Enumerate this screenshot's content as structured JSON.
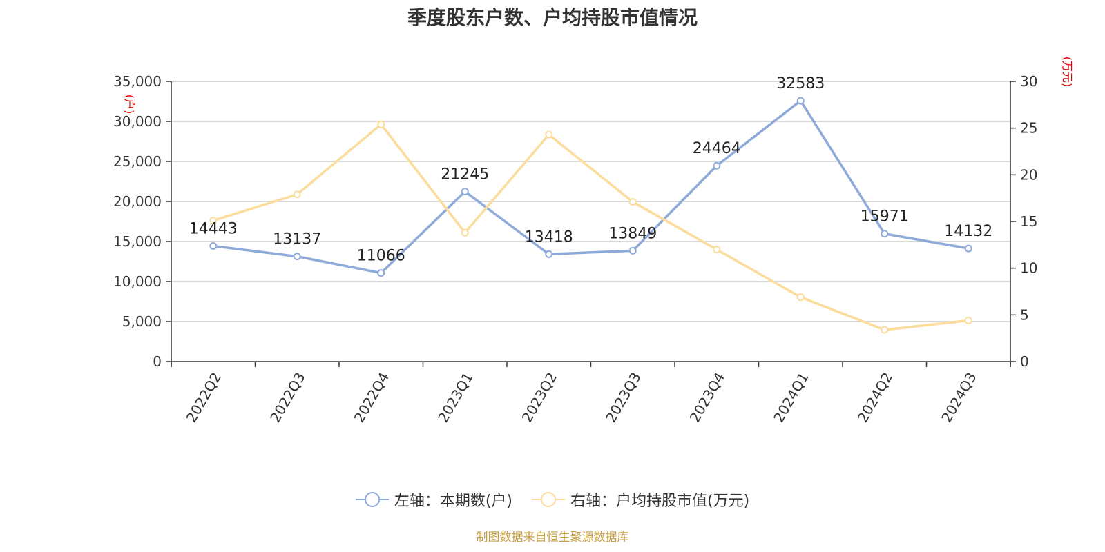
{
  "title": "季度股东户数、户均持股市值情况",
  "source_note": "制图数据来自恒生聚源数据库",
  "legend": {
    "left_label": "左轴：本期数(户)",
    "right_label": "右轴：户均持股市值(万元)"
  },
  "colors": {
    "left_series": "#8eaad9",
    "right_series": "#fcdc9c",
    "unit_text": "#e00000",
    "source_text": "#c8a040"
  },
  "chart_data": {
    "type": "line",
    "categories": [
      "2022Q2",
      "2022Q3",
      "2022Q4",
      "2023Q1",
      "2023Q2",
      "2023Q3",
      "2023Q4",
      "2024Q1",
      "2024Q2",
      "2024Q3"
    ],
    "left_axis": {
      "unit": "(户)",
      "ylim": [
        0,
        35000
      ],
      "ticks": [
        0,
        5000,
        10000,
        15000,
        20000,
        25000,
        30000,
        35000
      ],
      "tick_labels": [
        "0",
        "5,000",
        "10,000",
        "15,000",
        "20,000",
        "25,000",
        "30,000",
        "35,000"
      ]
    },
    "right_axis": {
      "unit": "(万元)",
      "ylim": [
        0,
        30
      ],
      "ticks": [
        0,
        5,
        10,
        15,
        20,
        25,
        30
      ],
      "tick_labels": [
        "0",
        "5",
        "10",
        "15",
        "20",
        "25",
        "30"
      ]
    },
    "grid": true,
    "legend_position": "bottom",
    "series": [
      {
        "name": "左轴：本期数(户)",
        "axis": "left",
        "values": [
          14443,
          13137,
          11066,
          21245,
          13418,
          13849,
          24464,
          32583,
          15971,
          14132
        ],
        "data_labels": [
          "14443",
          "13137",
          "11066",
          "21245",
          "13418",
          "13849",
          "24464",
          "32583",
          "15971",
          "14132"
        ]
      },
      {
        "name": "右轴：户均持股市值(万元)",
        "axis": "right",
        "values": [
          15.1,
          17.9,
          25.4,
          13.8,
          24.3,
          17.1,
          12.0,
          6.9,
          3.4,
          4.4
        ]
      }
    ]
  }
}
